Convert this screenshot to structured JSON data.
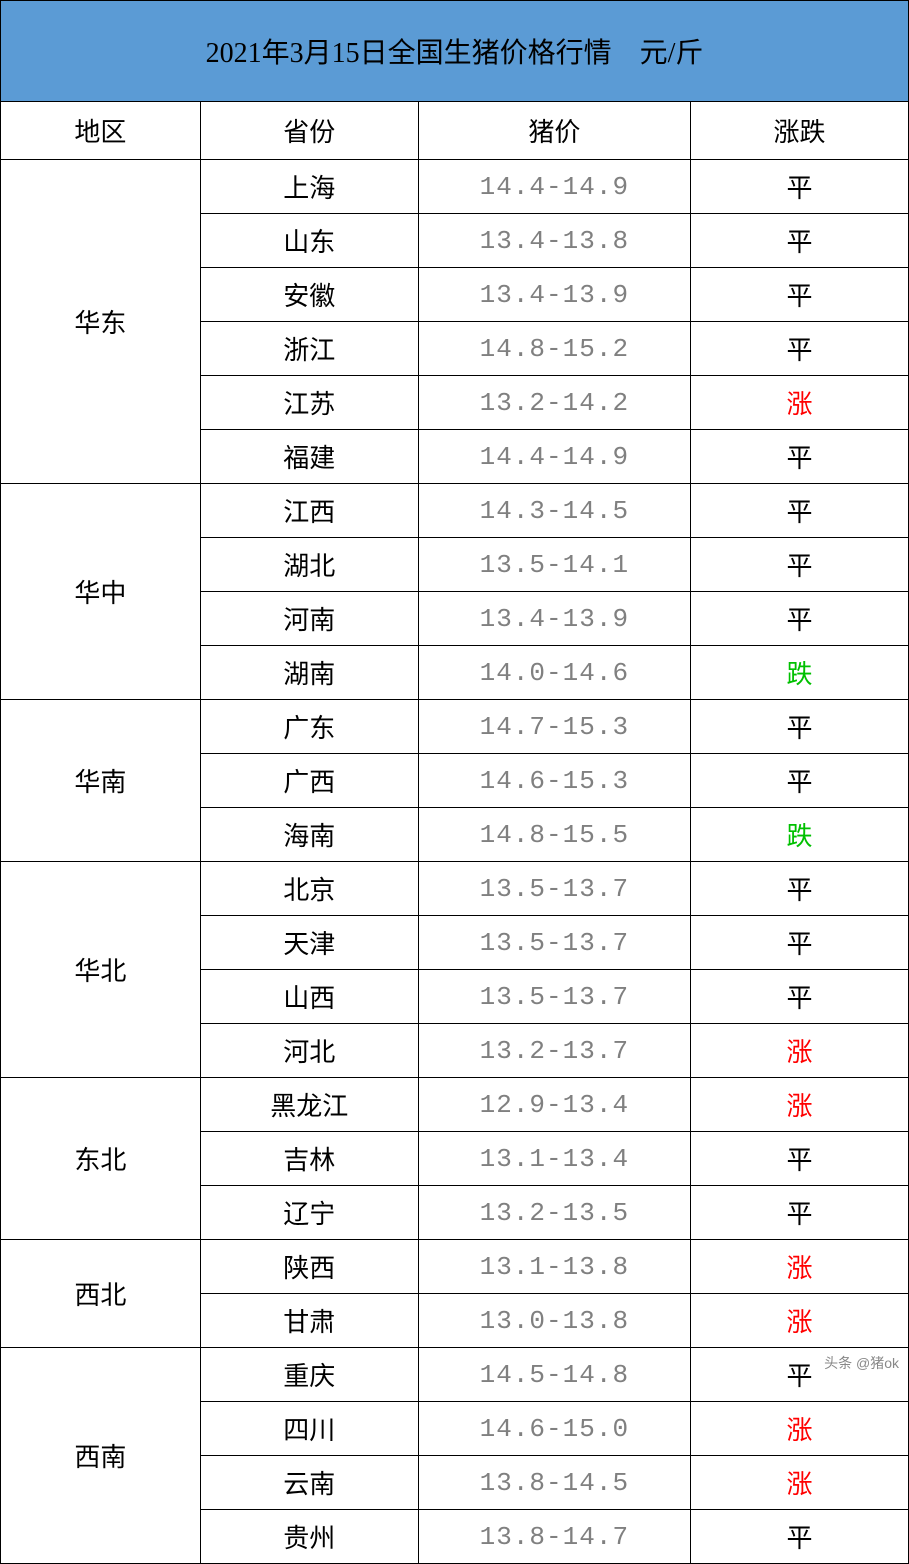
{
  "title": "2021年3月15日全国生猪价格行情　元/斤",
  "headers": {
    "region": "地区",
    "province": "省份",
    "price": "猪价",
    "trend": "涨跌"
  },
  "trend_labels": {
    "flat": "平",
    "up": "涨",
    "down": "跌"
  },
  "colors": {
    "title_bg": "#5b9bd5",
    "border": "#000000",
    "text": "#000000",
    "price_text": "#808080",
    "trend_flat": "#000000",
    "trend_up": "#ff0000",
    "trend_down": "#00c000",
    "background": "#ffffff"
  },
  "typography": {
    "title_fontsize": 28,
    "header_fontsize": 26,
    "cell_fontsize": 26,
    "font_family": "SimSun"
  },
  "column_widths": {
    "region": "22%",
    "province": "24%",
    "price": "30%",
    "trend": "24%"
  },
  "regions": [
    {
      "name": "华东",
      "rows": [
        {
          "province": "上海",
          "price": "14.4-14.9",
          "trend": "flat"
        },
        {
          "province": "山东",
          "price": "13.4-13.8",
          "trend": "flat"
        },
        {
          "province": "安徽",
          "price": "13.4-13.9",
          "trend": "flat"
        },
        {
          "province": "浙江",
          "price": "14.8-15.2",
          "trend": "flat"
        },
        {
          "province": "江苏",
          "price": "13.2-14.2",
          "trend": "up"
        },
        {
          "province": "福建",
          "price": "14.4-14.9",
          "trend": "flat"
        }
      ]
    },
    {
      "name": "华中",
      "rows": [
        {
          "province": "江西",
          "price": "14.3-14.5",
          "trend": "flat"
        },
        {
          "province": "湖北",
          "price": "13.5-14.1",
          "trend": "flat"
        },
        {
          "province": "河南",
          "price": "13.4-13.9",
          "trend": "flat"
        },
        {
          "province": "湖南",
          "price": "14.0-14.6",
          "trend": "down"
        }
      ]
    },
    {
      "name": "华南",
      "rows": [
        {
          "province": "广东",
          "price": "14.7-15.3",
          "trend": "flat"
        },
        {
          "province": "广西",
          "price": "14.6-15.3",
          "trend": "flat"
        },
        {
          "province": "海南",
          "price": "14.8-15.5",
          "trend": "down"
        }
      ]
    },
    {
      "name": "华北",
      "rows": [
        {
          "province": "北京",
          "price": "13.5-13.7",
          "trend": "flat"
        },
        {
          "province": "天津",
          "price": "13.5-13.7",
          "trend": "flat"
        },
        {
          "province": "山西",
          "price": "13.5-13.7",
          "trend": "flat"
        },
        {
          "province": "河北",
          "price": "13.2-13.7",
          "trend": "up"
        }
      ]
    },
    {
      "name": "东北",
      "rows": [
        {
          "province": "黑龙江",
          "price": "12.9-13.4",
          "trend": "up"
        },
        {
          "province": "吉林",
          "price": "13.1-13.4",
          "trend": "flat"
        },
        {
          "province": "辽宁",
          "price": "13.2-13.5",
          "trend": "flat"
        }
      ]
    },
    {
      "name": "西北",
      "rows": [
        {
          "province": "陕西",
          "price": "13.1-13.8",
          "trend": "up"
        },
        {
          "province": "甘肃",
          "price": "13.0-13.8",
          "trend": "up"
        }
      ]
    },
    {
      "name": "西南",
      "rows": [
        {
          "province": "重庆",
          "price": "14.5-14.8",
          "trend": "flat"
        },
        {
          "province": "四川",
          "price": "14.6-15.0",
          "trend": "up"
        },
        {
          "province": "云南",
          "price": "13.8-14.5",
          "trend": "up"
        },
        {
          "province": "贵州",
          "price": "13.8-14.7",
          "trend": "flat"
        }
      ]
    }
  ],
  "watermark": "头条 @猪ok"
}
